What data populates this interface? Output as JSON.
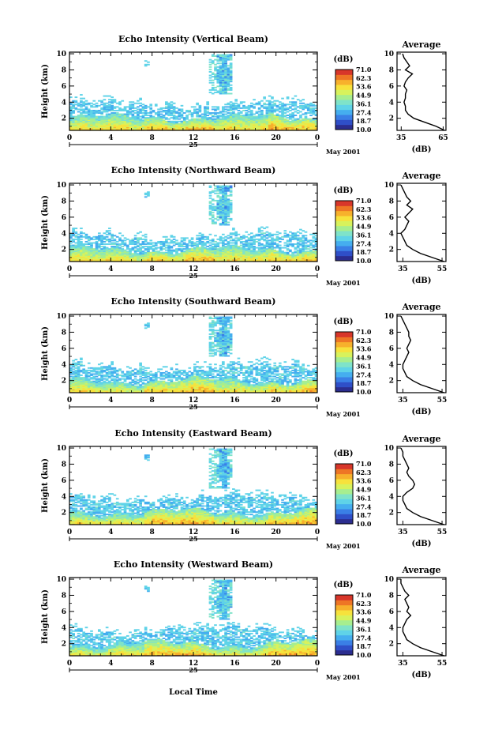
{
  "figure": {
    "xlabel_bottom": "Local Time",
    "colorbar_unit": "(dB)",
    "colorbar_ticks": [
      "71.0",
      "62.3",
      "53.6",
      "44.9",
      "36.1",
      "27.4",
      "18.7",
      "10.0"
    ],
    "colorscale": [
      "#2b2d8f",
      "#2f4fc8",
      "#3a7fe6",
      "#45aeef",
      "#5fd3e8",
      "#7fe3c9",
      "#a7ee8f",
      "#d8f25c",
      "#f7e23c",
      "#f7b12c",
      "#ee7625",
      "#d8362a"
    ],
    "x_ticks": [
      "0",
      "4",
      "8",
      "12",
      "16",
      "20",
      "0"
    ],
    "day_label": "25",
    "month_label": "May 2001",
    "y_ticks": [
      "2",
      "4",
      "6",
      "8",
      "10"
    ],
    "ylabel": "Height (km)",
    "avg_title": "Average",
    "avg_xlabel": "(dB)"
  },
  "chart_data": [
    {
      "type": "heatmap",
      "title": "Echo Intensity (Vertical Beam)",
      "xlabel": "",
      "ylabel": "Height (km)",
      "xlim": [
        0,
        24
      ],
      "ylim": [
        0.5,
        10.2
      ],
      "zlim": [
        10.0,
        71.0
      ],
      "structure": {
        "boundary_layer_top_km": 2.0,
        "cloud_top_km": 3.6,
        "upper_patch": {
          "x": [
            13.3,
            15.6
          ],
          "y": [
            5.0,
            9.9
          ]
        }
      },
      "average_profile": {
        "title": "Average",
        "xlabel": "(dB)",
        "x_ticks": [
          "35",
          "65"
        ],
        "xlim": [
          32,
          67
        ],
        "y": [
          0.5,
          1.0,
          1.5,
          2.0,
          2.5,
          3.0,
          3.5,
          4.0,
          4.5,
          5.0,
          5.5,
          6.0,
          6.5,
          7.0,
          7.5,
          8.0,
          8.5,
          9.0,
          9.5,
          10.0
        ],
        "x": [
          66,
          60,
          52,
          44,
          40,
          38,
          38,
          37,
          38,
          38,
          39,
          37,
          38,
          40,
          43,
          38,
          41,
          39,
          37,
          36
        ]
      }
    },
    {
      "type": "heatmap",
      "title": "Echo Intensity (Northward Beam)",
      "xlabel": "",
      "ylabel": "Height (km)",
      "xlim": [
        0,
        24
      ],
      "ylim": [
        0.5,
        10.2
      ],
      "zlim": [
        10.0,
        71.0
      ],
      "structure": {
        "boundary_layer_top_km": 1.9,
        "cloud_top_km": 3.5,
        "upper_patch": {
          "x": [
            13.3,
            15.6
          ],
          "y": [
            5.0,
            9.9
          ]
        }
      },
      "average_profile": {
        "title": "Average",
        "xlabel": "(dB)",
        "x_ticks": [
          "35",
          "55"
        ],
        "xlim": [
          32,
          57
        ],
        "y": [
          0.5,
          1.0,
          1.5,
          2.0,
          2.5,
          3.0,
          3.5,
          4.0,
          4.5,
          5.0,
          5.5,
          6.0,
          6.5,
          7.0,
          7.5,
          8.0,
          8.5,
          9.0,
          9.5,
          10.0
        ],
        "x": [
          56,
          50,
          44,
          40,
          37,
          36,
          35,
          34,
          36,
          37,
          38,
          36,
          38,
          40,
          37,
          39,
          37,
          36,
          35,
          34
        ]
      }
    },
    {
      "type": "heatmap",
      "title": "Echo Intensity (Southward Beam)",
      "xlabel": "",
      "ylabel": "Height (km)",
      "xlim": [
        0,
        24
      ],
      "ylim": [
        0.5,
        10.2
      ],
      "zlim": [
        10.0,
        71.0
      ],
      "structure": {
        "boundary_layer_top_km": 1.9,
        "cloud_top_km": 3.6,
        "upper_patch": {
          "x": [
            13.3,
            15.6
          ],
          "y": [
            5.0,
            9.9
          ]
        }
      },
      "average_profile": {
        "title": "Average",
        "xlabel": "(dB)",
        "x_ticks": [
          "35",
          "55"
        ],
        "xlim": [
          32,
          57
        ],
        "y": [
          0.5,
          1.0,
          1.5,
          2.0,
          2.5,
          3.0,
          3.5,
          4.0,
          4.5,
          5.0,
          5.5,
          6.0,
          6.5,
          7.0,
          7.5,
          8.0,
          8.5,
          9.0,
          9.5,
          10.0
        ],
        "x": [
          56,
          50,
          44,
          40,
          37,
          36,
          35,
          35,
          36,
          37,
          38,
          37,
          38,
          39,
          38,
          38,
          37,
          36,
          35,
          34
        ]
      }
    },
    {
      "type": "heatmap",
      "title": "Echo Intensity (Eastward Beam)",
      "xlabel": "",
      "ylabel": "Height (km)",
      "xlim": [
        0,
        24
      ],
      "ylim": [
        0.5,
        10.2
      ],
      "zlim": [
        10.0,
        71.0
      ],
      "structure": {
        "boundary_layer_top_km": 2.0,
        "cloud_top_km": 3.7,
        "upper_patch": {
          "x": [
            13.3,
            15.6
          ],
          "y": [
            5.0,
            9.9
          ]
        }
      },
      "average_profile": {
        "title": "Average",
        "xlabel": "(dB)",
        "x_ticks": [
          "35",
          "55"
        ],
        "xlim": [
          32,
          57
        ],
        "y": [
          0.5,
          1.0,
          1.5,
          2.0,
          2.5,
          3.0,
          3.5,
          4.0,
          4.5,
          5.0,
          5.5,
          6.0,
          6.5,
          7.0,
          7.5,
          8.0,
          8.5,
          9.0,
          9.5,
          10.0
        ],
        "x": [
          56,
          50,
          44,
          40,
          37,
          36,
          35,
          35,
          37,
          40,
          41,
          40,
          38,
          37,
          38,
          37,
          36,
          35,
          35,
          34
        ]
      }
    },
    {
      "type": "heatmap",
      "title": "Echo Intensity (Westward Beam)",
      "xlabel": "Local Time",
      "ylabel": "Height (km)",
      "xlim": [
        0,
        24
      ],
      "ylim": [
        0.5,
        10.2
      ],
      "zlim": [
        10.0,
        71.0
      ],
      "structure": {
        "boundary_layer_top_km": 1.9,
        "cloud_top_km": 3.6,
        "upper_patch": {
          "x": [
            13.3,
            15.6
          ],
          "y": [
            5.0,
            9.9
          ]
        }
      },
      "average_profile": {
        "title": "Average",
        "xlabel": "(dB)",
        "x_ticks": [
          "35",
          "55"
        ],
        "xlim": [
          32,
          57
        ],
        "y": [
          0.5,
          1.0,
          1.5,
          2.0,
          2.5,
          3.0,
          3.5,
          4.0,
          4.5,
          5.0,
          5.5,
          6.0,
          6.5,
          7.0,
          7.5,
          8.0,
          8.5,
          9.0,
          9.5,
          10.0
        ],
        "x": [
          56,
          50,
          44,
          40,
          37,
          36,
          35,
          35,
          36,
          37,
          39,
          37,
          38,
          37,
          36,
          38,
          36,
          35,
          34,
          34
        ]
      }
    }
  ]
}
